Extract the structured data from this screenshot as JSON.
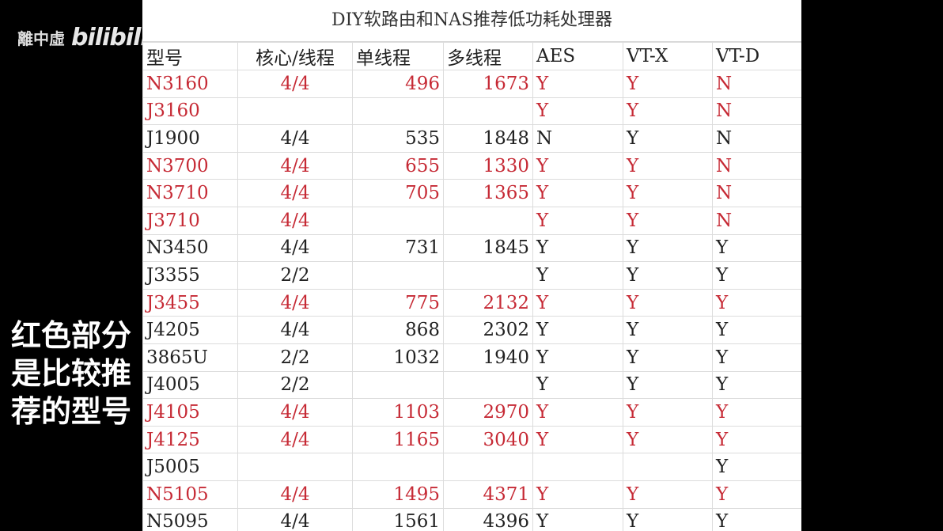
{
  "watermark": {
    "channel": "離中虛",
    "logo": "bilibili"
  },
  "sheet": {
    "title": "DIY软路由和NAS推荐低功耗处理器",
    "headers": [
      "型号",
      "核心/线程",
      "单线程",
      "多线程",
      "AES",
      "VT-X",
      "VT-D"
    ],
    "highlight_color": "#c62a35",
    "rows": [
      {
        "red": true,
        "cells": [
          "N3160",
          "4/4",
          "496",
          "1673",
          "Y",
          "Y",
          "N"
        ]
      },
      {
        "red": true,
        "cells": [
          "J3160",
          "",
          "",
          "",
          "Y",
          "Y",
          "N"
        ]
      },
      {
        "red": false,
        "cells": [
          "J1900",
          "4/4",
          "535",
          "1848",
          "N",
          "Y",
          "N"
        ]
      },
      {
        "red": true,
        "cells": [
          "N3700",
          "4/4",
          "655",
          "1330",
          "Y",
          "Y",
          "N"
        ]
      },
      {
        "red": true,
        "cells": [
          "N3710",
          "4/4",
          "705",
          "1365",
          "Y",
          "Y",
          "N"
        ]
      },
      {
        "red": true,
        "cells": [
          "J3710",
          "4/4",
          "",
          "",
          "Y",
          "Y",
          "N"
        ]
      },
      {
        "red": false,
        "cells": [
          "N3450",
          "4/4",
          "731",
          "1845",
          "Y",
          "Y",
          "Y"
        ]
      },
      {
        "red": false,
        "cells": [
          "J3355",
          "2/2",
          "",
          "",
          "Y",
          "Y",
          "Y"
        ]
      },
      {
        "red": true,
        "cells": [
          "J3455",
          "4/4",
          "775",
          "2132",
          "Y",
          "Y",
          "Y"
        ]
      },
      {
        "red": false,
        "cells": [
          "J4205",
          "4/4",
          "868",
          "2302",
          "Y",
          "Y",
          "Y"
        ]
      },
      {
        "red": false,
        "cells": [
          "3865U",
          "2/2",
          "1032",
          "1940",
          "Y",
          "Y",
          "Y"
        ]
      },
      {
        "red": false,
        "cells": [
          "J4005",
          "2/2",
          "",
          "",
          "Y",
          "Y",
          "Y"
        ]
      },
      {
        "red": true,
        "cells": [
          "J4105",
          "4/4",
          "1103",
          "2970",
          "Y",
          "Y",
          "Y"
        ]
      },
      {
        "red": true,
        "cells": [
          "J4125",
          "4/4",
          "1165",
          "3040",
          "Y",
          "Y",
          "Y"
        ]
      },
      {
        "red": false,
        "cells": [
          "J5005",
          "",
          "",
          "",
          "",
          "",
          "Y"
        ]
      },
      {
        "red": true,
        "cells": [
          "N5105",
          "4/4",
          "1495",
          "4371",
          "Y",
          "Y",
          "Y"
        ]
      },
      {
        "red": false,
        "cells": [
          "N5095",
          "4/4",
          "1561",
          "4396",
          "Y",
          "Y",
          "Y"
        ]
      }
    ]
  },
  "subtitle": "红色部分是比较推荐的型号"
}
